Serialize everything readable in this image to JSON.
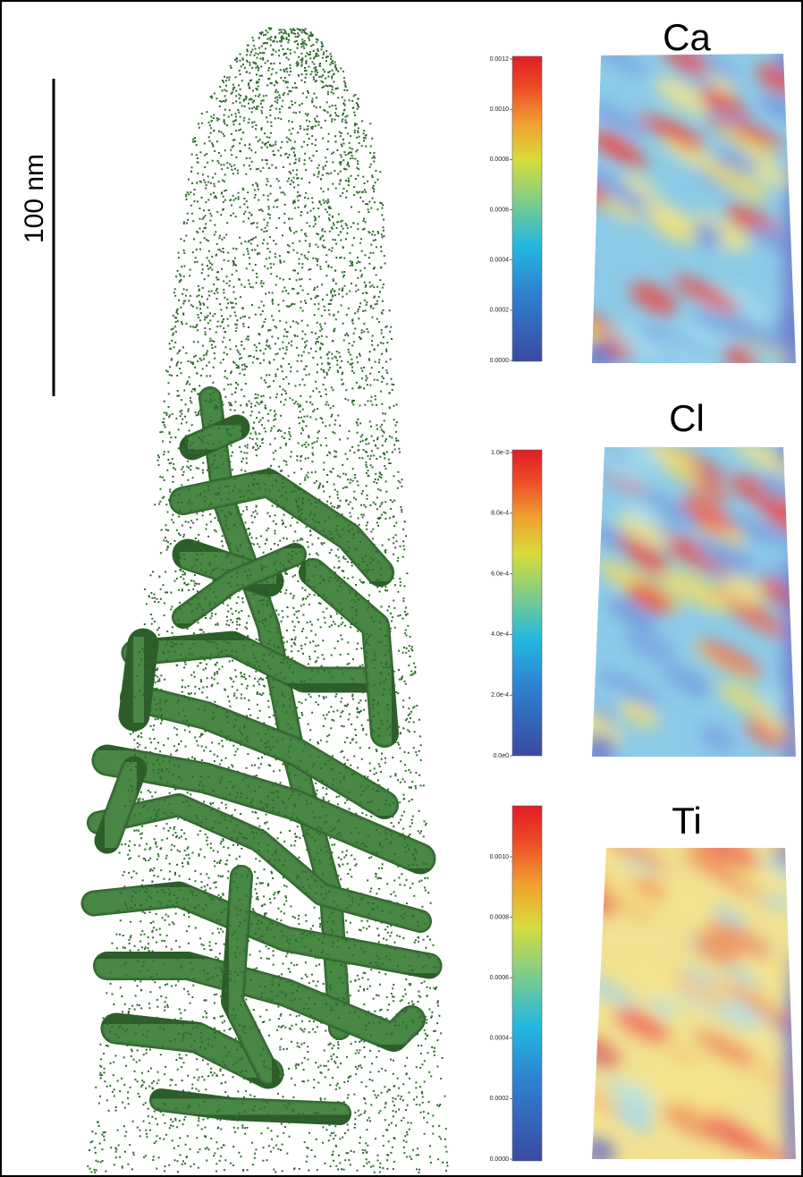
{
  "scale_bar": {
    "label": "100 nm"
  },
  "panels": [
    {
      "element": "Ca",
      "colorbar_ticks": [
        "0.0000",
        "0.0002",
        "0.0004",
        "0.0006",
        "0.0008",
        "0.0010",
        "0.0012"
      ]
    },
    {
      "element": "Cl",
      "colorbar_ticks": [
        "0.0e0",
        "2.0e-4",
        "4.0e-4",
        "6.0e-4",
        "8.0e-4",
        "1.0e-3"
      ]
    },
    {
      "element": "Ti",
      "colorbar_ticks": [
        "0.0000",
        "0.0002",
        "0.0004",
        "0.0006",
        "0.0008",
        "0.0010"
      ]
    }
  ]
}
